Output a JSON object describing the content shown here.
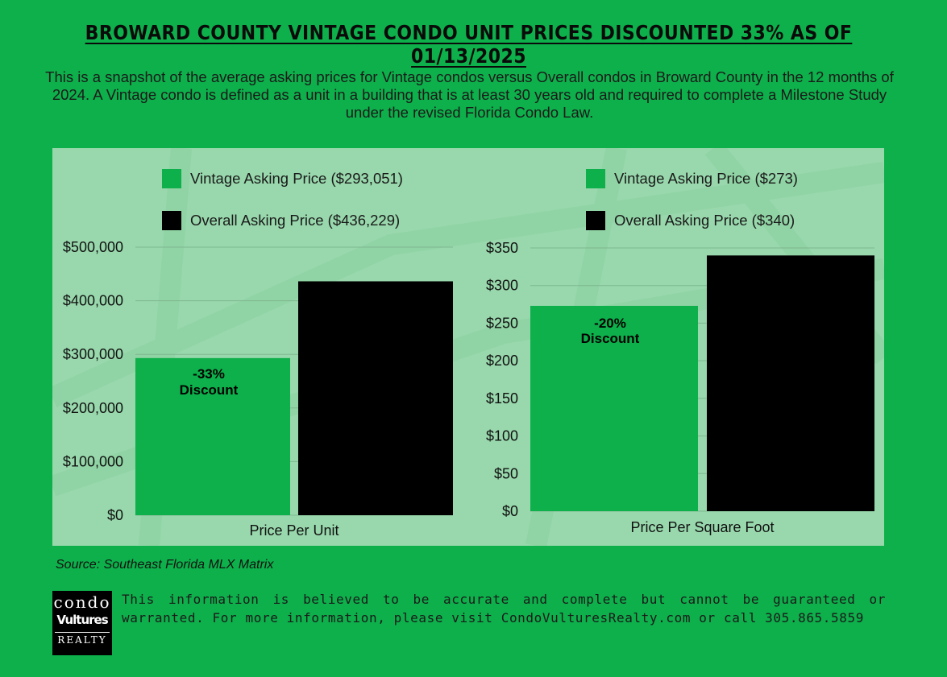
{
  "header": {
    "title": "BROWARD COUNTY VINTAGE CONDO UNIT PRICES DISCOUNTED 33% AS OF 01/13/2025",
    "intro": "This is a snapshot of the average asking prices for Vintage condos versus Overall condos in Broward County in the 12 months of 2024. A Vintage condo is defined as a unit in a building that is at least 30 years old and required to complete a Milestone Study under the revised Florida Condo Law."
  },
  "colors": {
    "background": "#0db04b",
    "panel": "#98d8ac",
    "vintage": "#0db04b",
    "overall": "#000000"
  },
  "chart_data": [
    {
      "type": "bar",
      "categories": [
        "Price Per Unit"
      ],
      "series": [
        {
          "name": "Vintage Asking Price ($293,051)",
          "values": [
            293051
          ],
          "color": "#0db04b"
        },
        {
          "name": "Overall Asking Price ($436,229)",
          "values": [
            436229
          ],
          "color": "#000000"
        }
      ],
      "ylim": [
        0,
        500000
      ],
      "yticks": [
        0,
        100000,
        200000,
        300000,
        400000,
        500000
      ],
      "ytick_labels": [
        "$0",
        "$100,000",
        "$200,000",
        "$300,000",
        "$400,000",
        "$500,000"
      ],
      "xlabel": "Price Per Unit",
      "annotation": {
        "line1": "-33%",
        "line2": "Discount"
      },
      "grid": true,
      "legend_position": "top"
    },
    {
      "type": "bar",
      "categories": [
        "Price Per Square Foot"
      ],
      "series": [
        {
          "name": "Vintage Asking Price ($273)",
          "values": [
            273
          ],
          "color": "#0db04b"
        },
        {
          "name": "Overall Asking Price ($340)",
          "values": [
            340
          ],
          "color": "#000000"
        }
      ],
      "ylim": [
        0,
        350
      ],
      "yticks": [
        0,
        50,
        100,
        150,
        200,
        250,
        300,
        350
      ],
      "ytick_labels": [
        "$0",
        "$50",
        "$100",
        "$150",
        "$200",
        "$250",
        "$300",
        "$350"
      ],
      "xlabel": "Price Per Square Foot",
      "annotation": {
        "line1": "-20%",
        "line2": "Discount"
      },
      "grid": true,
      "legend_position": "top"
    }
  ],
  "footer": {
    "source": "Source: Southeast Florida MLX Matrix",
    "logo": {
      "line1": "condo",
      "line2": "Vultures",
      "line3": "REALTY"
    },
    "disclaimer": "This information is believed to be accurate and complete but cannot be guaranteed or warranted. For more information, please visit CondoVulturesRealty.com or call 305.865.5859"
  }
}
